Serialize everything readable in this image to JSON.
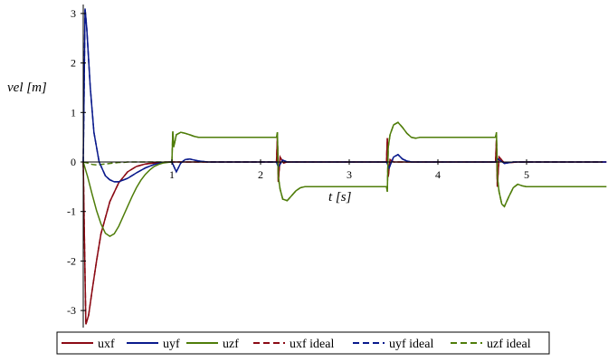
{
  "chart_data": {
    "type": "line",
    "xlabel": "t [s]",
    "ylabel": "vel [m]",
    "xlim": [
      0,
      5.9
    ],
    "ylim": [
      -3.3,
      3.15
    ],
    "x_ticks": [
      1,
      2,
      3,
      4,
      5
    ],
    "y_ticks": [
      -3,
      -2,
      -1,
      0,
      1,
      2,
      3
    ],
    "grid": false,
    "legend_position": "bottom",
    "series": [
      {
        "name": "uxf",
        "color": "#8b0a14",
        "dash": false,
        "x": [
          0,
          0.01,
          0.03,
          0.06,
          0.1,
          0.15,
          0.2,
          0.3,
          0.4,
          0.5,
          0.6,
          0.7,
          0.8,
          0.9,
          1.0,
          2.18,
          2.19,
          2.2,
          2.22,
          2.26,
          2.3,
          2.4,
          3.42,
          3.43,
          3.44,
          3.46,
          3.5,
          3.6,
          4.65,
          4.66,
          4.67,
          4.69,
          4.75,
          4.9,
          5.9
        ],
        "y": [
          0,
          -1.2,
          -3.28,
          -3.1,
          -2.6,
          -2.0,
          -1.45,
          -0.8,
          -0.42,
          -0.2,
          -0.09,
          -0.04,
          -0.02,
          -0.005,
          0,
          0,
          0.5,
          -0.4,
          0.1,
          -0.02,
          0,
          0,
          0,
          0.48,
          -0.3,
          0.05,
          0,
          0,
          0,
          0.45,
          -0.5,
          0.1,
          -0.02,
          0,
          0
        ]
      },
      {
        "name": "uyf",
        "color": "#0a1a8c",
        "dash": false,
        "x": [
          0,
          0.01,
          0.02,
          0.04,
          0.08,
          0.12,
          0.18,
          0.25,
          0.3,
          0.35,
          0.4,
          0.5,
          0.6,
          0.7,
          0.8,
          0.9,
          1.0,
          1.05,
          1.1,
          1.15,
          1.2,
          1.3,
          1.4,
          2.18,
          2.2,
          2.25,
          2.3,
          2.4,
          3.42,
          3.45,
          3.5,
          3.55,
          3.6,
          3.65,
          3.7,
          3.8,
          4.65,
          4.68,
          4.75,
          4.85,
          5.9
        ],
        "y": [
          0,
          1.5,
          3.1,
          2.7,
          1.5,
          0.6,
          0.0,
          -0.28,
          -0.36,
          -0.4,
          -0.4,
          -0.33,
          -0.22,
          -0.12,
          -0.05,
          -0.01,
          0,
          -0.2,
          -0.02,
          0.05,
          0.06,
          0.02,
          0,
          0,
          -0.1,
          0.04,
          0,
          0,
          0,
          -0.12,
          0.1,
          0.15,
          0.06,
          0.02,
          0,
          0,
          0,
          0.06,
          -0.03,
          0,
          0
        ]
      },
      {
        "name": "uzf",
        "color": "#4f7d0a",
        "dash": false,
        "x": [
          0,
          0.05,
          0.1,
          0.15,
          0.2,
          0.25,
          0.3,
          0.35,
          0.4,
          0.45,
          0.5,
          0.55,
          0.6,
          0.65,
          0.7,
          0.75,
          0.8,
          0.85,
          0.9,
          0.95,
          1.0,
          1.01,
          1.02,
          1.05,
          1.1,
          1.15,
          1.2,
          1.25,
          1.3,
          1.4,
          1.5,
          2.18,
          2.19,
          2.2,
          2.22,
          2.25,
          2.3,
          2.35,
          2.4,
          2.45,
          2.5,
          2.6,
          2.7,
          3.42,
          3.43,
          3.44,
          3.46,
          3.5,
          3.55,
          3.6,
          3.65,
          3.7,
          3.75,
          3.8,
          3.9,
          4.65,
          4.66,
          4.67,
          4.69,
          4.72,
          4.75,
          4.8,
          4.85,
          4.9,
          4.95,
          5.0,
          5.1,
          5.9
        ],
        "y": [
          0,
          -0.3,
          -0.65,
          -0.98,
          -1.25,
          -1.44,
          -1.5,
          -1.45,
          -1.3,
          -1.1,
          -0.9,
          -0.7,
          -0.52,
          -0.37,
          -0.25,
          -0.16,
          -0.09,
          -0.05,
          -0.02,
          -0.01,
          0,
          0.62,
          0.3,
          0.55,
          0.6,
          0.58,
          0.55,
          0.52,
          0.5,
          0.5,
          0.5,
          0.5,
          0.6,
          -0.3,
          -0.55,
          -0.75,
          -0.78,
          -0.68,
          -0.58,
          -0.52,
          -0.5,
          -0.5,
          -0.5,
          -0.5,
          -0.6,
          0.3,
          0.55,
          0.75,
          0.8,
          0.7,
          0.58,
          0.5,
          0.48,
          0.5,
          0.5,
          0.5,
          0.6,
          -0.3,
          -0.6,
          -0.85,
          -0.9,
          -0.7,
          -0.52,
          -0.45,
          -0.48,
          -0.5,
          -0.5,
          -0.5
        ]
      },
      {
        "name": "uxf ideal",
        "color": "#8b0a14",
        "dash": true,
        "x": [
          0,
          0.01,
          0.03,
          0.06,
          0.1,
          0.15,
          0.2,
          0.3,
          0.4,
          0.5,
          0.6,
          0.7,
          0.8,
          0.9,
          1.0,
          2.18,
          2.19,
          2.2,
          2.22,
          2.26,
          2.3,
          2.4,
          3.42,
          3.43,
          3.44,
          3.46,
          3.5,
          3.6,
          4.65,
          4.66,
          4.67,
          4.69,
          4.75,
          4.9,
          5.9
        ],
        "y": [
          0,
          -1.2,
          -3.28,
          -3.1,
          -2.6,
          -2.0,
          -1.45,
          -0.8,
          -0.42,
          -0.2,
          -0.09,
          -0.04,
          -0.02,
          -0.005,
          0,
          0,
          0.5,
          -0.4,
          0.1,
          -0.02,
          0,
          0,
          0,
          0.48,
          -0.3,
          0.05,
          0,
          0,
          0,
          0.45,
          -0.5,
          0.1,
          -0.02,
          0,
          0
        ]
      },
      {
        "name": "uyf ideal",
        "color": "#0a1a8c",
        "dash": true,
        "x": [
          0,
          0.01,
          0.02,
          0.04,
          0.08,
          0.12,
          0.18,
          0.25,
          0.3,
          0.35,
          0.4,
          0.5,
          0.6,
          0.7,
          0.8,
          0.9,
          1.0,
          1.05,
          1.1,
          1.15,
          1.2,
          1.3,
          1.4,
          2.18,
          2.2,
          2.25,
          2.3,
          2.4,
          3.42,
          3.45,
          3.5,
          3.55,
          3.6,
          3.65,
          3.7,
          3.8,
          4.65,
          4.68,
          4.75,
          4.85,
          5.9
        ],
        "y": [
          0,
          1.5,
          3.1,
          2.7,
          1.5,
          0.6,
          0.0,
          -0.28,
          -0.36,
          -0.4,
          -0.4,
          -0.33,
          -0.22,
          -0.12,
          -0.05,
          -0.01,
          0,
          -0.2,
          -0.02,
          0.05,
          0.06,
          0.02,
          0,
          0,
          -0.1,
          0.04,
          0,
          0,
          0,
          -0.12,
          0.1,
          0.15,
          0.06,
          0.02,
          0,
          0,
          0,
          0.06,
          -0.03,
          0,
          0
        ]
      },
      {
        "name": "uzf ideal",
        "color": "#4f7d0a",
        "dash": true,
        "x": [
          0,
          0.05,
          0.1,
          0.15,
          0.2,
          0.25,
          0.3,
          0.35,
          0.4,
          0.45,
          0.5,
          0.55,
          0.6,
          0.65,
          0.7,
          0.75,
          0.8,
          0.85,
          0.9,
          0.95,
          1.0,
          1.01,
          1.02,
          1.05,
          1.1,
          1.15,
          1.2,
          1.25,
          1.3,
          1.4,
          1.5,
          2.18,
          2.19,
          2.2,
          2.22,
          2.25,
          2.3,
          2.35,
          2.4,
          2.45,
          2.5,
          2.6,
          2.7,
          3.42,
          3.43,
          3.44,
          3.46,
          3.5,
          3.55,
          3.6,
          3.65,
          3.7,
          3.75,
          3.8,
          3.9,
          4.65,
          4.66,
          4.67,
          4.69,
          4.72,
          4.75,
          4.8,
          4.85,
          4.9,
          4.95,
          5.0,
          5.1,
          5.9
        ],
        "y": [
          0,
          -0.02,
          -0.05,
          -0.06,
          -0.05,
          -0.04,
          -0.03,
          -0.02,
          -0.01,
          -0.01,
          0,
          0,
          0,
          0,
          0,
          0,
          0,
          0,
          0,
          0,
          0,
          0.62,
          0.3,
          0.55,
          0.6,
          0.58,
          0.55,
          0.52,
          0.5,
          0.5,
          0.5,
          0.5,
          0.6,
          -0.3,
          -0.55,
          -0.75,
          -0.78,
          -0.68,
          -0.58,
          -0.52,
          -0.5,
          -0.5,
          -0.5,
          -0.5,
          -0.6,
          0.3,
          0.55,
          0.75,
          0.8,
          0.7,
          0.58,
          0.5,
          0.48,
          0.5,
          0.5,
          0.5,
          0.6,
          -0.3,
          -0.6,
          -0.85,
          -0.9,
          -0.7,
          -0.52,
          -0.45,
          -0.48,
          -0.5,
          -0.5,
          -0.5
        ]
      }
    ]
  }
}
